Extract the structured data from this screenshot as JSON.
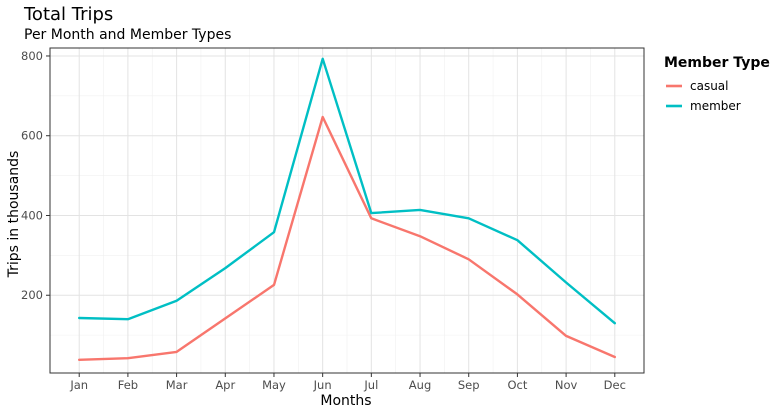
{
  "chart_data": {
    "type": "line",
    "title": "Total Trips",
    "subtitle": "Per Month and Member Types",
    "xlabel": "Months",
    "ylabel": "Trips in thousands",
    "categories": [
      "Jan",
      "Feb",
      "Mar",
      "Apr",
      "May",
      "Jun",
      "Jul",
      "Aug",
      "Sep",
      "Oct",
      "Nov",
      "Dec"
    ],
    "yticks": [
      200,
      400,
      600,
      800
    ],
    "ylim": [
      5,
      820
    ],
    "grid": true,
    "legend": {
      "title": "Member Type",
      "position": "right"
    },
    "series": [
      {
        "name": "casual",
        "color": "#F8766D",
        "values": [
          38,
          42,
          58,
          142,
          226,
          647,
          393,
          348,
          290,
          202,
          98,
          45
        ]
      },
      {
        "name": "member",
        "color": "#00BFC4",
        "values": [
          143,
          140,
          186,
          268,
          358,
          793,
          406,
          414,
          393,
          338,
          232,
          130
        ]
      }
    ]
  }
}
